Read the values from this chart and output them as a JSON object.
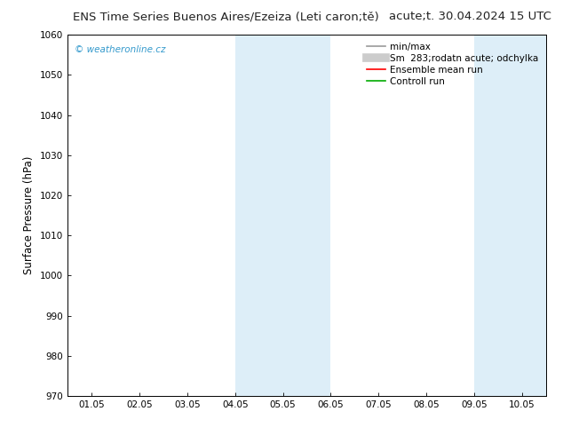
{
  "title_left": "ENS Time Series Buenos Aires/Ezeiza (Leti caron;tě)",
  "title_right": "acute;t. 30.04.2024 15 UTC",
  "ylabel": "Surface Pressure (hPa)",
  "ylim": [
    970,
    1060
  ],
  "yticks": [
    970,
    980,
    990,
    1000,
    1010,
    1020,
    1030,
    1040,
    1050,
    1060
  ],
  "xtick_positions": [
    0,
    1,
    2,
    3,
    4,
    5,
    6,
    7,
    8,
    9
  ],
  "xtick_labels": [
    "01.05",
    "02.05",
    "03.05",
    "04.05",
    "05.05",
    "06.05",
    "07.05",
    "08.05",
    "09.05",
    "10.05"
  ],
  "xlim": [
    -0.5,
    9.5
  ],
  "shaded_bands": [
    {
      "xmin": 3.0,
      "xmax": 5.0
    },
    {
      "xmin": 8.0,
      "xmax": 9.5
    }
  ],
  "band_color": "#ddeef8",
  "watermark": "© weatheronline.cz",
  "watermark_color": "#3399cc",
  "legend_entries": [
    {
      "label": "min/max",
      "color": "#999999",
      "lw": 1.2,
      "type": "hline"
    },
    {
      "label": "Sm  283;rodatn acute; odchylka",
      "color": "#cccccc",
      "lw": 7,
      "type": "hline"
    },
    {
      "label": "Ensemble mean run",
      "color": "#ff0000",
      "lw": 1.2,
      "type": "hline"
    },
    {
      "label": "Controll run",
      "color": "#00aa00",
      "lw": 1.2,
      "type": "hline"
    }
  ],
  "bg_color": "#ffffff",
  "plot_bg_color": "#ffffff",
  "title_fontsize": 9.5,
  "axis_fontsize": 8.5,
  "tick_fontsize": 7.5,
  "legend_fontsize": 7.5,
  "watermark_fontsize": 7.5
}
